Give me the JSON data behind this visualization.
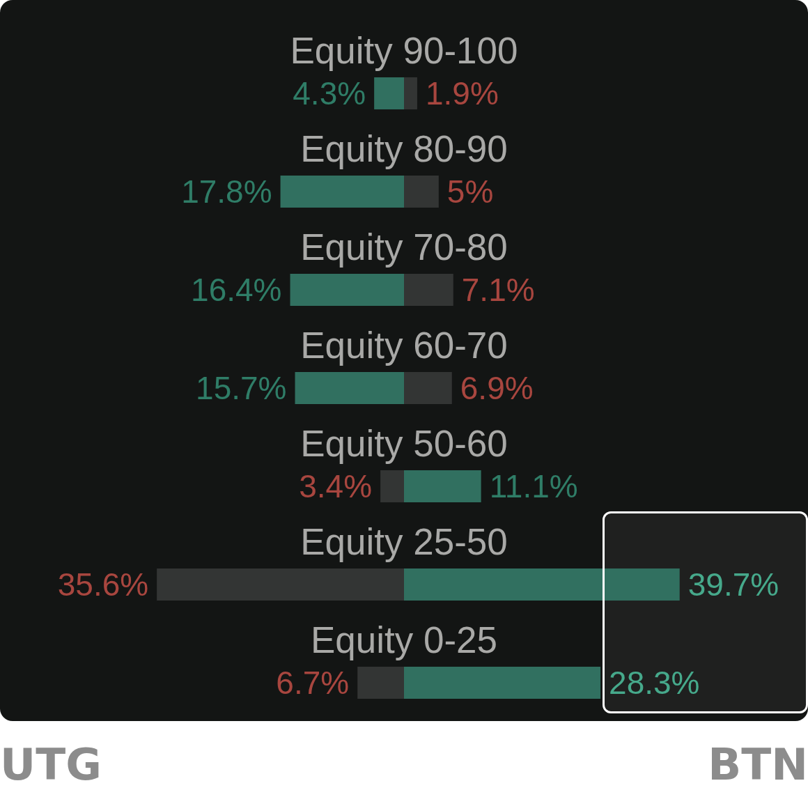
{
  "chart_data": [
    {
      "type": "bar",
      "orientation": "horizontal",
      "categories": [
        "Equity 90-100",
        "Equity 80-90",
        "Equity 70-80",
        "Equity 60-70",
        "Equity 50-60",
        "Equity 25-50",
        "Equity 0-25"
      ],
      "series": [
        {
          "name": "UTG",
          "values": [
            4.3,
            17.8,
            16.4,
            15.7,
            3.4,
            35.6,
            6.7
          ],
          "value_labels": [
            "4.3%",
            "17.8%",
            "16.4%",
            "15.7%",
            "3.4%",
            "35.6%",
            "6.7%"
          ],
          "colors": [
            "#317060",
            "#317060",
            "#317060",
            "#317060",
            "#333534",
            "#333534",
            "#333534"
          ]
        }
      ],
      "tick_labels": "y"
    },
    {
      "type": "bar",
      "orientation": "horizontal",
      "categories": [
        null,
        null,
        null,
        null,
        null,
        null,
        null
      ],
      "series": [
        {
          "name": "BTN",
          "values": [
            1.9,
            5,
            7.1,
            6.9,
            11.1,
            39.7,
            28.3
          ],
          "value_labels": [
            "1.9%",
            "5%",
            "7.1%",
            "6.9%",
            "11.1%",
            "39.7%",
            "28.3%"
          ],
          "colors": [
            "#333534",
            "#333534",
            "#333534",
            "#333534",
            "#317060",
            "#317060",
            "#317060"
          ]
        }
      ],
      "tick_labels": false
    }
  ]
}
